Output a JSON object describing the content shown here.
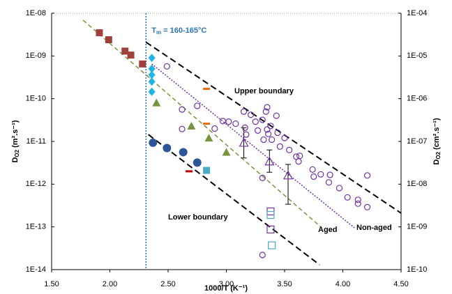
{
  "chart_data": {
    "type": "scatter",
    "ylog": true,
    "y_label": {
      "main": "D",
      "sub": "O2",
      "rest": " (m².s⁻¹)"
    },
    "y2_label": {
      "main": "D",
      "sub": "O2",
      "rest": " (cm².s⁻¹)"
    },
    "x_label": "1000/T (K⁻¹)",
    "xlim": [
      1.5,
      4.5
    ],
    "xticks": [
      {
        "value": 1.5,
        "label": "1.50"
      },
      {
        "value": 2,
        "label": "2.00"
      },
      {
        "value": 2.5,
        "label": "2.50"
      },
      {
        "value": 3,
        "label": "3.00"
      },
      {
        "value": 3.5,
        "label": "3.50"
      },
      {
        "value": 4,
        "label": "4.00"
      },
      {
        "value": 4.5,
        "label": "4.50"
      }
    ],
    "ylim": [
      1e-14,
      1e-08
    ],
    "yticks": [
      {
        "value": 1e-14,
        "label": "1E-14"
      },
      {
        "value": 1e-13,
        "label": "1E-13"
      },
      {
        "value": 1e-12,
        "label": "1E-12"
      },
      {
        "value": 1e-11,
        "label": "1E-11"
      },
      {
        "value": 1e-10,
        "label": "1E-10"
      },
      {
        "value": 1e-09,
        "label": "1E-09"
      },
      {
        "value": 1e-08,
        "label": "1E-08"
      }
    ],
    "y2lim": [
      1e-10,
      0.0001
    ],
    "y2ticks": [
      {
        "value": 1e-10,
        "label": "1E-10"
      },
      {
        "value": 1e-09,
        "label": "1E-09"
      },
      {
        "value": 1e-08,
        "label": "1E-08"
      },
      {
        "value": 1e-07,
        "label": "1E-07"
      },
      {
        "value": 1e-06,
        "label": "1E-06"
      },
      {
        "value": 1e-05,
        "label": "1E-05"
      },
      {
        "value": 0.0001,
        "label": "1E-04"
      }
    ],
    "tm_line": 2.31,
    "tm_label": {
      "main": "T",
      "sub": "m",
      "rest": " = 160-165°C"
    },
    "tm_color": "#2e75b6",
    "series": [
      {
        "marker": "square",
        "filled": true,
        "color": "#a0413c",
        "x": [
          1.91,
          1.99,
          2.13,
          2.18,
          2.28
        ],
        "values": [
          3.5e-09,
          2.4e-09,
          1.3e-09,
          1.05e-09,
          6.5e-10
        ]
      },
      {
        "marker": "diamond",
        "filled": true,
        "color": "#1fb4e6",
        "x": [
          2.36,
          2.36,
          2.36,
          2.36,
          2.36
        ],
        "values": [
          9e-10,
          5e-10,
          3.6e-10,
          2.5e-10,
          1.45e-10
        ]
      },
      {
        "marker": "triangle",
        "filled": true,
        "color": "#77933c",
        "x": [
          2.4,
          2.7,
          2.85,
          3.0
        ],
        "values": [
          8e-11,
          2.3e-11,
          1.2e-11,
          5.6e-12
        ]
      },
      {
        "marker": "circle",
        "filled": true,
        "color": "#2e5597",
        "x": [
          2.37,
          2.49,
          2.63,
          2.75
        ],
        "values": [
          9.3e-12,
          7e-12,
          5.6e-12,
          3.2e-12
        ]
      },
      {
        "marker": "dash",
        "filled": true,
        "color": "#e46c0a",
        "x": [
          2.83,
          2.83
        ],
        "values": [
          1.7e-10,
          2.6e-11
        ]
      },
      {
        "marker": "dash",
        "filled": true,
        "color": "#c00000",
        "x": [
          2.68
        ],
        "values": [
          2e-12
        ]
      },
      {
        "marker": "square",
        "filled": true,
        "color": "#4bacc6",
        "x": [
          2.83
        ],
        "values": [
          2.1e-12
        ]
      },
      {
        "marker": "square",
        "filled": false,
        "color": "#7030a0",
        "x": [
          3.38,
          3.38
        ],
        "values": [
          2.3e-13,
          8.7e-14
        ]
      },
      {
        "marker": "square",
        "filled": false,
        "color": "#4bacc6",
        "x": [
          3.38,
          3.39
        ],
        "values": [
          1.9e-13,
          3.7e-14
        ]
      },
      {
        "marker": "triangle",
        "filled": false,
        "color": "#7030a0",
        "x": [
          3.15,
          3.37,
          3.53
        ],
        "values": [
          9.3e-12,
          3.4e-12,
          1.6e-12
        ],
        "err_low": [
          4.1e-12,
          1.9e-12,
          3.4e-13
        ],
        "err_high": [
          2.1e-11,
          6.3e-12,
          2.9e-12
        ]
      },
      {
        "marker": "circle",
        "filled": false,
        "color": "#7030a0",
        "x": [
          2.49,
          2.62,
          2.62,
          2.75,
          2.9,
          2.97,
          3.02,
          3.08,
          3.15,
          3.16,
          3.17,
          3.21,
          3.25,
          3.27,
          3.31,
          3.32,
          3.34,
          3.35,
          3.35,
          3.36,
          3.38,
          3.39,
          3.43,
          3.44,
          3.46,
          3.5,
          3.54,
          3.6,
          3.62,
          3.63,
          3.74,
          3.75,
          3.81,
          3.88,
          3.89,
          3.97,
          4.04,
          4.13,
          4.13,
          4.21,
          4.21,
          3.31,
          3.31
        ],
        "values": [
          5.7e-10,
          5.6e-11,
          1.95e-11,
          6.8e-11,
          2e-11,
          3e-11,
          2.9e-11,
          2.6e-11,
          5e-11,
          2.1e-11,
          1.45e-11,
          4.2e-11,
          2.9e-11,
          1.8e-11,
          3.2e-11,
          1.1e-11,
          5e-11,
          6.3e-11,
          1.9e-11,
          1.5e-11,
          2.3e-11,
          1.1e-11,
          4e-11,
          1.6e-11,
          7.6e-12,
          1.2e-11,
          6.3e-12,
          4.4e-12,
          3.4e-12,
          4.6e-12,
          2.2e-12,
          1.5e-12,
          1.7e-12,
          1.1e-12,
          1.65e-12,
          8.1e-13,
          4.9e-13,
          4.3e-13,
          3.5e-13,
          2.9e-13,
          1.6e-12,
          1.4e-12,
          2.2e-14
        ]
      }
    ],
    "lines": [
      {
        "color": "#000000",
        "dash": "9 5",
        "width": 2,
        "x": [
          2.31,
          4.5
        ],
        "values": [
          2.1e-09,
          2.1e-13
        ]
      },
      {
        "color": "#000000",
        "dash": "9 5",
        "width": 2,
        "x": [
          2.33,
          3.8
        ],
        "values": [
          1.45e-11,
          1.3e-14
        ]
      },
      {
        "color": "#77933c",
        "dash": "6 4",
        "width": 1.5,
        "x": [
          1.77,
          3.82
        ],
        "values": [
          6.9e-09,
          9.5e-14
        ]
      },
      {
        "color": "#7030a0",
        "dash": "2 2",
        "width": 1.5,
        "x": [
          2.36,
          4.1
        ],
        "values": [
          6.5e-10,
          9.5e-14
        ]
      }
    ],
    "annotations": [
      {
        "text": "Upper boundary",
        "color": "#000000"
      },
      {
        "text": "Lower boundary",
        "color": "#000000"
      },
      {
        "text": "Aged",
        "color": "#77933c"
      },
      {
        "text": "Non-aged",
        "color": "#7030a0"
      }
    ]
  }
}
